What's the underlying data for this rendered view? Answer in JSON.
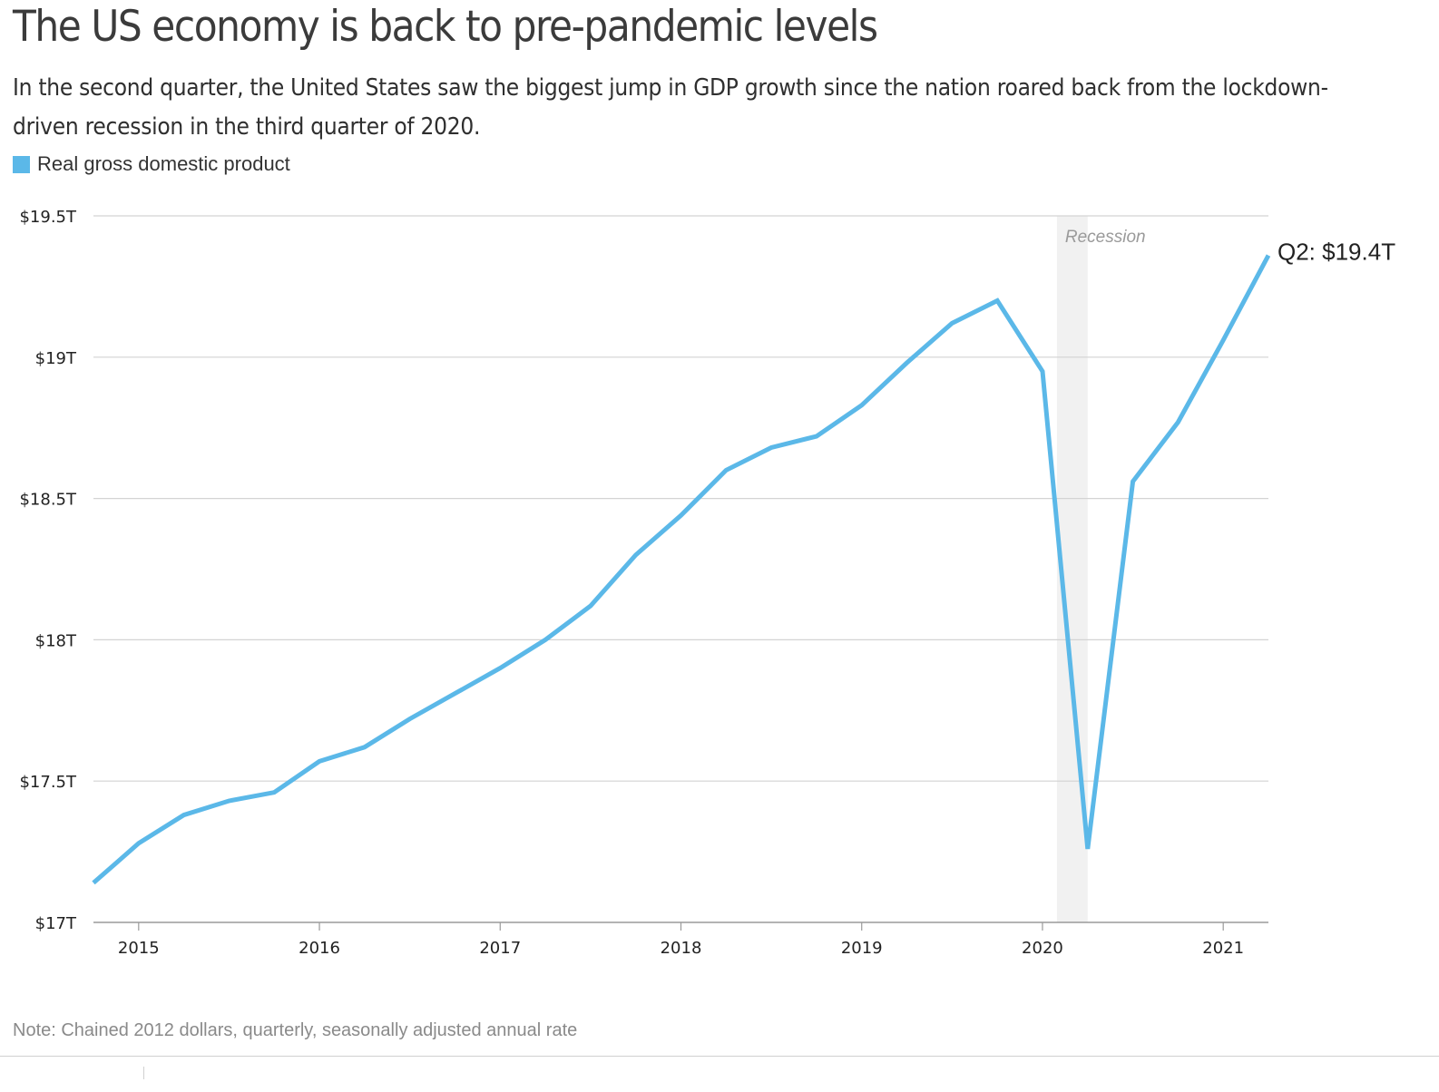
{
  "header": {
    "title": "The US economy is back to pre-pandemic levels",
    "subtitle": "In the second quarter, the United States saw the biggest jump in GDP growth since the nation roared back from the lockdown-driven recession in the third quarter of 2020."
  },
  "legend": {
    "label": "Real gross domestic product",
    "color": "#5bb8e8"
  },
  "note": "Note: Chained 2012 dollars, quarterly, seasonally adjusted annual rate",
  "chart_data": {
    "type": "line",
    "title": "The US economy is back to pre-pandemic levels",
    "xlabel": "",
    "ylabel": "",
    "grid": true,
    "series": [
      {
        "name": "Real gross domestic product",
        "color": "#5bb8e8",
        "x": [
          2014.75,
          2015.0,
          2015.25,
          2015.5,
          2015.75,
          2016.0,
          2016.25,
          2016.5,
          2016.75,
          2017.0,
          2017.25,
          2017.5,
          2017.75,
          2018.0,
          2018.25,
          2018.5,
          2018.75,
          2019.0,
          2019.25,
          2019.5,
          2019.75,
          2020.0,
          2020.25,
          2020.5,
          2020.75,
          2021.0,
          2021.25
        ],
        "values": [
          17.14,
          17.28,
          17.38,
          17.43,
          17.46,
          17.57,
          17.62,
          17.72,
          17.81,
          17.9,
          18.0,
          18.12,
          18.3,
          18.44,
          18.6,
          18.68,
          18.72,
          18.83,
          18.98,
          19.12,
          19.2,
          18.95,
          17.26,
          18.56,
          18.77,
          19.06,
          19.36
        ]
      }
    ],
    "x_ticks": [
      2015,
      2016,
      2017,
      2018,
      2019,
      2020,
      2021
    ],
    "x_tick_labels": [
      "2015",
      "2016",
      "2017",
      "2018",
      "2019",
      "2020",
      "2021"
    ],
    "y_ticks": [
      17,
      17.5,
      18,
      18.5,
      19,
      19.5
    ],
    "y_tick_labels": [
      "$17T",
      "$17.5T",
      "$18T",
      "$18.5T",
      "$19T",
      "$19.5T"
    ],
    "xlim": [
      2014.75,
      2021.25
    ],
    "ylim": [
      17,
      19.5
    ],
    "shaded_regions": [
      {
        "label": "Recession",
        "x_start": 2020.08,
        "x_end": 2020.25
      }
    ],
    "annotations": [
      {
        "text": "Q2: $19.4T",
        "x": 2021.25,
        "y": 19.36
      }
    ]
  }
}
